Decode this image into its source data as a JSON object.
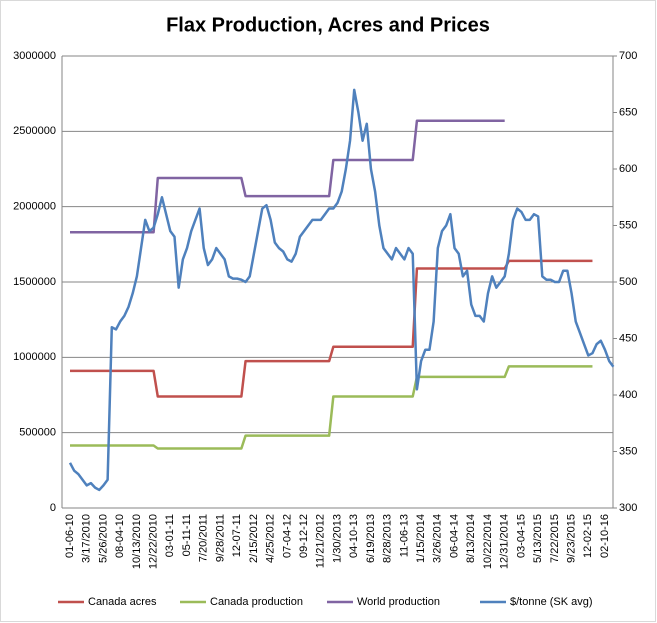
{
  "chart_data": {
    "type": "line",
    "title": "Flax Production, Acres and Prices",
    "categories": [
      "01-06-10",
      null,
      null,
      null,
      "3/17/2010",
      null,
      null,
      null,
      "5/26/2010",
      null,
      null,
      null,
      "08-04-10",
      null,
      null,
      null,
      "10/13/2010",
      null,
      null,
      null,
      "12/22/2010",
      null,
      null,
      null,
      "03-01-11",
      null,
      null,
      null,
      "05-11-11",
      null,
      null,
      null,
      "7/20/2011",
      null,
      null,
      null,
      "9/28/2011",
      null,
      null,
      null,
      "12-07-11",
      null,
      null,
      null,
      "2/15/2012",
      null,
      null,
      null,
      "4/25/2012",
      null,
      null,
      null,
      "07-04-12",
      null,
      null,
      null,
      "09-12-12",
      null,
      null,
      null,
      "11/21/2012",
      null,
      null,
      null,
      "1/30/2013",
      null,
      null,
      null,
      "04-10-13",
      null,
      null,
      null,
      "6/19/2013",
      null,
      null,
      null,
      "8/28/2013",
      null,
      null,
      null,
      "11-06-13",
      null,
      null,
      null,
      "1/15/2014",
      null,
      null,
      null,
      "3/26/2014",
      null,
      null,
      null,
      "06-04-14",
      null,
      null,
      null,
      "8/13/2014",
      null,
      null,
      null,
      "10/22/2014",
      null,
      null,
      null,
      "12/31/2014",
      null,
      null,
      null,
      "03-04-15",
      null,
      null,
      null,
      "5/13/2015",
      null,
      null,
      null,
      "7/22/2015",
      null,
      null,
      null,
      "9/23/2015",
      null,
      null,
      null,
      "12-02-15",
      null,
      null,
      null,
      "02-10-16",
      null,
      null
    ],
    "series": [
      {
        "name": "Canada acres",
        "color": "#c0504d",
        "values": [
          910000,
          910000,
          910000,
          910000,
          910000,
          910000,
          910000,
          910000,
          910000,
          910000,
          910000,
          910000,
          910000,
          910000,
          910000,
          910000,
          910000,
          910000,
          910000,
          910000,
          910000,
          740000,
          740000,
          740000,
          740000,
          740000,
          740000,
          740000,
          740000,
          740000,
          740000,
          740000,
          740000,
          740000,
          740000,
          740000,
          740000,
          740000,
          740000,
          740000,
          740000,
          740000,
          975000,
          975000,
          975000,
          975000,
          975000,
          975000,
          975000,
          975000,
          975000,
          975000,
          975000,
          975000,
          975000,
          975000,
          975000,
          975000,
          975000,
          975000,
          975000,
          975000,
          975000,
          1070000,
          1070000,
          1070000,
          1070000,
          1070000,
          1070000,
          1070000,
          1070000,
          1070000,
          1070000,
          1070000,
          1070000,
          1070000,
          1070000,
          1070000,
          1070000,
          1070000,
          1070000,
          1070000,
          1070000,
          1590000,
          1590000,
          1590000,
          1590000,
          1590000,
          1590000,
          1590000,
          1590000,
          1590000,
          1590000,
          1590000,
          1590000,
          1590000,
          1590000,
          1590000,
          1590000,
          1590000,
          1590000,
          1590000,
          1590000,
          1590000,
          1590000,
          1640000,
          1640000,
          1640000,
          1640000,
          1640000,
          1640000,
          1640000,
          1640000,
          1640000,
          1640000,
          1640000,
          1640000,
          1640000,
          1640000,
          1640000,
          1640000,
          1640000,
          1640000,
          1640000,
          1640000,
          1640000,
          null,
          null,
          null,
          null,
          null
        ]
      },
      {
        "name": "Canada production",
        "color": "#9bbb59",
        "values": [
          415000,
          415000,
          415000,
          415000,
          415000,
          415000,
          415000,
          415000,
          415000,
          415000,
          415000,
          415000,
          415000,
          415000,
          415000,
          415000,
          415000,
          415000,
          415000,
          415000,
          415000,
          395000,
          395000,
          395000,
          395000,
          395000,
          395000,
          395000,
          395000,
          395000,
          395000,
          395000,
          395000,
          395000,
          395000,
          395000,
          395000,
          395000,
          395000,
          395000,
          395000,
          395000,
          480000,
          480000,
          480000,
          480000,
          480000,
          480000,
          480000,
          480000,
          480000,
          480000,
          480000,
          480000,
          480000,
          480000,
          480000,
          480000,
          480000,
          480000,
          480000,
          480000,
          480000,
          740000,
          740000,
          740000,
          740000,
          740000,
          740000,
          740000,
          740000,
          740000,
          740000,
          740000,
          740000,
          740000,
          740000,
          740000,
          740000,
          740000,
          740000,
          740000,
          740000,
          870000,
          870000,
          870000,
          870000,
          870000,
          870000,
          870000,
          870000,
          870000,
          870000,
          870000,
          870000,
          870000,
          870000,
          870000,
          870000,
          870000,
          870000,
          870000,
          870000,
          870000,
          870000,
          940000,
          940000,
          940000,
          940000,
          940000,
          940000,
          940000,
          940000,
          940000,
          940000,
          940000,
          940000,
          940000,
          940000,
          940000,
          940000,
          940000,
          940000,
          940000,
          940000,
          940000,
          null,
          null,
          null,
          null,
          null
        ]
      },
      {
        "name": "World production",
        "color": "#8064a2",
        "values": [
          1830000,
          1830000,
          1830000,
          1830000,
          1830000,
          1830000,
          1830000,
          1830000,
          1830000,
          1830000,
          1830000,
          1830000,
          1830000,
          1830000,
          1830000,
          1830000,
          1830000,
          1830000,
          1830000,
          1830000,
          1830000,
          2190000,
          2190000,
          2190000,
          2190000,
          2190000,
          2190000,
          2190000,
          2190000,
          2190000,
          2190000,
          2190000,
          2190000,
          2190000,
          2190000,
          2190000,
          2190000,
          2190000,
          2190000,
          2190000,
          2190000,
          2190000,
          2070000,
          2070000,
          2070000,
          2070000,
          2070000,
          2070000,
          2070000,
          2070000,
          2070000,
          2070000,
          2070000,
          2070000,
          2070000,
          2070000,
          2070000,
          2070000,
          2070000,
          2070000,
          2070000,
          2070000,
          2070000,
          2310000,
          2310000,
          2310000,
          2310000,
          2310000,
          2310000,
          2310000,
          2310000,
          2310000,
          2310000,
          2310000,
          2310000,
          2310000,
          2310000,
          2310000,
          2310000,
          2310000,
          2310000,
          2310000,
          2310000,
          2570000,
          2570000,
          2570000,
          2570000,
          2570000,
          2570000,
          2570000,
          2570000,
          2570000,
          2570000,
          2570000,
          2570000,
          2570000,
          2570000,
          2570000,
          2570000,
          2570000,
          2570000,
          2570000,
          2570000,
          2570000,
          2570000,
          null,
          null,
          null,
          null,
          null,
          null,
          null,
          null,
          null,
          null,
          null,
          null,
          null,
          null,
          null,
          null,
          null,
          null,
          null,
          null,
          null,
          null,
          null,
          null,
          null,
          null
        ]
      },
      {
        "name": "$/tonne (SK avg)",
        "color": "#4f81bd",
        "axis": "y2",
        "values": [
          340,
          333,
          330,
          325,
          320,
          322,
          318,
          316,
          320,
          325,
          460,
          458,
          465,
          470,
          478,
          490,
          505,
          530,
          555,
          545,
          548,
          560,
          575,
          560,
          545,
          540,
          495,
          520,
          530,
          545,
          555,
          565,
          530,
          515,
          520,
          530,
          525,
          520,
          505,
          503,
          503,
          502,
          500,
          505,
          525,
          545,
          565,
          568,
          555,
          535,
          530,
          527,
          520,
          518,
          525,
          540,
          545,
          550,
          555,
          555,
          555,
          560,
          565,
          565,
          570,
          580,
          600,
          625,
          670,
          650,
          625,
          640,
          600,
          580,
          550,
          530,
          525,
          520,
          530,
          525,
          520,
          530,
          525,
          405,
          430,
          440,
          440,
          465,
          530,
          545,
          550,
          560,
          530,
          525,
          505,
          510,
          480,
          470,
          470,
          465,
          490,
          505,
          495,
          500,
          505,
          525,
          555,
          565,
          562,
          555,
          555,
          560,
          558,
          505,
          502,
          502,
          500,
          500,
          510,
          510,
          490,
          465,
          455,
          445,
          435,
          437,
          445,
          448,
          440,
          430,
          425
        ]
      }
    ],
    "ylim": [
      0,
      3000000
    ],
    "yticks": [
      0,
      500000,
      1000000,
      1500000,
      2000000,
      2500000,
      3000000
    ],
    "y2lim": [
      300,
      700
    ],
    "y2ticks": [
      300,
      350,
      400,
      450,
      500,
      550,
      600,
      650,
      700
    ],
    "grid": true
  }
}
